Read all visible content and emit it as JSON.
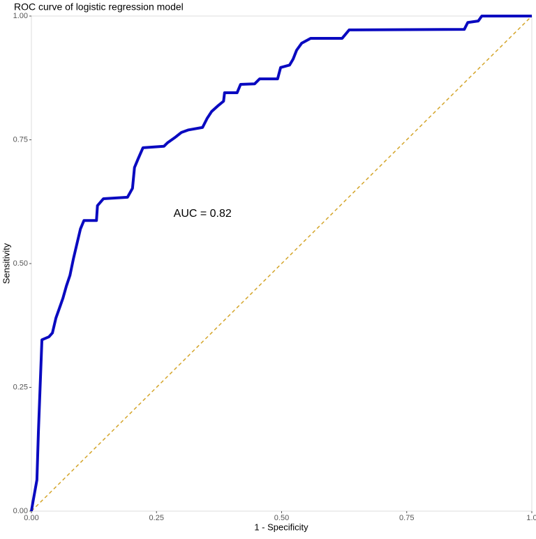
{
  "chart_data": {
    "type": "line",
    "title": "ROC curve of logistic regression model",
    "x_label": "1 - Specificity",
    "y_label": "Sensitivity",
    "annotation": {
      "text": "AUC = 0.82",
      "x": 0.4,
      "y": 0.6
    },
    "xlim": [
      0,
      1
    ],
    "ylim": [
      0,
      1
    ],
    "xticks": [
      {
        "value": 0,
        "label": "0.00"
      },
      {
        "value": 0.25,
        "label": "0.25"
      },
      {
        "value": 0.5,
        "label": "0.50"
      },
      {
        "value": 0.75,
        "label": "0.75"
      },
      {
        "value": 1,
        "label": "1.0"
      }
    ],
    "yticks": [
      {
        "value": 0,
        "label": "0.00"
      },
      {
        "value": 0.25,
        "label": "0.25"
      },
      {
        "value": 0.5,
        "label": "0.50"
      },
      {
        "value": 0.75,
        "label": "0.75"
      },
      {
        "value": 1,
        "label": "1.00"
      }
    ],
    "grid": false,
    "series": [
      {
        "color": "#0a0ac0",
        "width": 4,
        "x": [
          0,
          0.003,
          0.011,
          0.014,
          0.017,
          0.021,
          0.035,
          0.042,
          0.049,
          0.056,
          0.063,
          0.07,
          0.077,
          0.084,
          0.091,
          0.098,
          0.105,
          0.13,
          0.132,
          0.144,
          0.192,
          0.202,
          0.206,
          0.213,
          0.223,
          0.265,
          0.272,
          0.286,
          0.3,
          0.314,
          0.342,
          0.351,
          0.36,
          0.372,
          0.384,
          0.386,
          0.411,
          0.418,
          0.446,
          0.456,
          0.492,
          0.498,
          0.516,
          0.523,
          0.53,
          0.54,
          0.558,
          0.621,
          0.635,
          0.865,
          0.872,
          0.893,
          0.9,
          1
        ],
        "values": [
          0,
          0.018,
          0.063,
          0.16,
          0.24,
          0.346,
          0.352,
          0.36,
          0.39,
          0.41,
          0.43,
          0.455,
          0.476,
          0.51,
          0.54,
          0.57,
          0.587,
          0.587,
          0.617,
          0.631,
          0.634,
          0.652,
          0.694,
          0.711,
          0.734,
          0.737,
          0.744,
          0.754,
          0.765,
          0.77,
          0.775,
          0.793,
          0.807,
          0.818,
          0.828,
          0.845,
          0.845,
          0.862,
          0.863,
          0.873,
          0.873,
          0.896,
          0.901,
          0.913,
          0.931,
          0.945,
          0.955,
          0.955,
          0.972,
          0.973,
          0.987,
          0.99,
          1,
          1
        ]
      },
      {
        "color": "#d4a52a",
        "width": 1.5,
        "dashed": true,
        "x": [
          0,
          1
        ],
        "values": [
          0,
          1
        ]
      }
    ]
  }
}
